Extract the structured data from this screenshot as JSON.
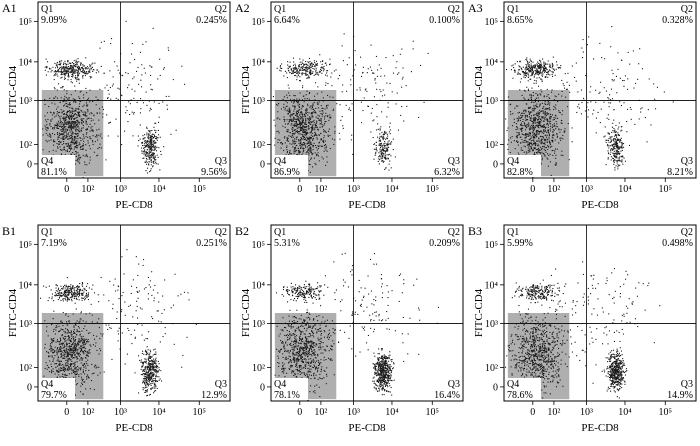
{
  "chart_data": [
    {
      "type": "scatter",
      "panel_label": "A1",
      "xlabel": "PE-CD8",
      "ylabel": "FITC-CD4",
      "quadrants": [
        {
          "name": "Q1",
          "percent": "9.09%"
        },
        {
          "name": "Q2",
          "percent": "0.245%"
        },
        {
          "name": "Q3",
          "percent": "9.56%"
        },
        {
          "name": "Q4",
          "percent": "81.1%"
        }
      ],
      "x_ticks": [
        "0",
        "10²",
        "10³",
        "10⁴",
        "10⁵"
      ],
      "y_ticks": [
        "0",
        "10²",
        "10³",
        "10⁴",
        "10⁵"
      ]
    },
    {
      "type": "scatter",
      "panel_label": "A2",
      "xlabel": "PE-CD8",
      "ylabel": "FITC-CD4",
      "quadrants": [
        {
          "name": "Q1",
          "percent": "6.64%"
        },
        {
          "name": "Q2",
          "percent": "0.100%"
        },
        {
          "name": "Q3",
          "percent": "6.32%"
        },
        {
          "name": "Q4",
          "percent": "86.9%"
        }
      ],
      "x_ticks": [
        "0",
        "10²",
        "10³",
        "10⁴",
        "10⁵"
      ],
      "y_ticks": [
        "0",
        "10²",
        "10³",
        "10⁴",
        "10⁵"
      ]
    },
    {
      "type": "scatter",
      "panel_label": "A3",
      "xlabel": "PE-CD8",
      "ylabel": "FITC-CD4",
      "quadrants": [
        {
          "name": "Q1",
          "percent": "8.65%"
        },
        {
          "name": "Q2",
          "percent": "0.328%"
        },
        {
          "name": "Q3",
          "percent": "8.21%"
        },
        {
          "name": "Q4",
          "percent": "82.8%"
        }
      ],
      "x_ticks": [
        "0",
        "10²",
        "10³",
        "10⁴",
        "10⁵"
      ],
      "y_ticks": [
        "0",
        "10²",
        "10³",
        "10⁴",
        "10⁵"
      ]
    },
    {
      "type": "scatter",
      "panel_label": "B1",
      "xlabel": "PE-CD8",
      "ylabel": "FITC-CD4",
      "quadrants": [
        {
          "name": "Q1",
          "percent": "7.19%"
        },
        {
          "name": "Q2",
          "percent": "0.251%"
        },
        {
          "name": "Q3",
          "percent": "12.9%"
        },
        {
          "name": "Q4",
          "percent": "79.7%"
        }
      ],
      "x_ticks": [
        "0",
        "10²",
        "10³",
        "10⁴",
        "10⁵"
      ],
      "y_ticks": [
        "0",
        "10²",
        "10³",
        "10⁴",
        "10⁵"
      ]
    },
    {
      "type": "scatter",
      "panel_label": "B2",
      "xlabel": "PE-CD8",
      "ylabel": "FITC-CD4",
      "quadrants": [
        {
          "name": "Q1",
          "percent": "5.31%"
        },
        {
          "name": "Q2",
          "percent": "0.209%"
        },
        {
          "name": "Q3",
          "percent": "16.4%"
        },
        {
          "name": "Q4",
          "percent": "78.1%"
        }
      ],
      "x_ticks": [
        "0",
        "10²",
        "10³",
        "10⁴",
        "10⁵"
      ],
      "y_ticks": [
        "0",
        "10²",
        "10³",
        "10⁴",
        "10⁵"
      ]
    },
    {
      "type": "scatter",
      "panel_label": "B3",
      "xlabel": "PE-CD8",
      "ylabel": "FITC-CD4",
      "quadrants": [
        {
          "name": "Q1",
          "percent": "5.99%"
        },
        {
          "name": "Q2",
          "percent": "0.498%"
        },
        {
          "name": "Q3",
          "percent": "14.9%"
        },
        {
          "name": "Q4",
          "percent": "78.6%"
        }
      ],
      "x_ticks": [
        "0",
        "10²",
        "10³",
        "10⁴",
        "10⁵"
      ],
      "y_ticks": [
        "0",
        "10²",
        "10³",
        "10⁴",
        "10⁵"
      ]
    }
  ],
  "colors": {
    "dot": "#1a1a1a",
    "dense": "#6e6e6e",
    "axis": "#000000"
  }
}
